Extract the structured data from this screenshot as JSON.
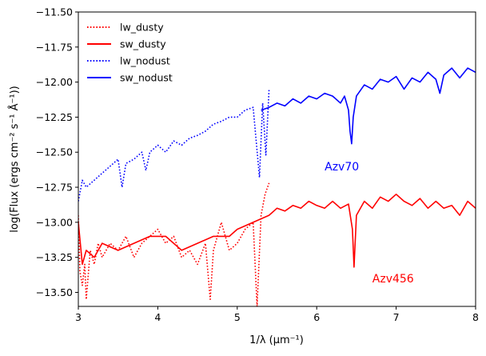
{
  "chart_data": {
    "type": "line",
    "title": "",
    "xlabel": "1/λ (μm⁻¹)",
    "ylabel": "log(Flux (ergs cm⁻² s⁻¹ Å⁻¹))",
    "xlim": [
      3,
      8
    ],
    "ylim": [
      -13.6,
      -11.5
    ],
    "xticks": [
      3,
      4,
      5,
      6,
      7,
      8
    ],
    "xtick_labels": [
      "3",
      "4",
      "5",
      "6",
      "7",
      "8"
    ],
    "yticks": [
      -11.5,
      -11.75,
      -12.0,
      -12.25,
      -12.5,
      -12.75,
      -13.0,
      -13.25,
      -13.5
    ],
    "ytick_labels": [
      "−11.50",
      "−11.75",
      "−12.00",
      "−12.25",
      "−12.50",
      "−12.75",
      "−13.00",
      "−13.25",
      "−13.50"
    ],
    "legend_location": "top-left",
    "series": [
      {
        "name": "lw_dusty",
        "color": "#ff0000",
        "style": "dotted",
        "points": [
          [
            3.0,
            -12.95
          ],
          [
            3.02,
            -13.35
          ],
          [
            3.05,
            -13.45
          ],
          [
            3.08,
            -13.3
          ],
          [
            3.1,
            -13.55
          ],
          [
            3.15,
            -13.2
          ],
          [
            3.2,
            -13.3
          ],
          [
            3.25,
            -13.15
          ],
          [
            3.3,
            -13.25
          ],
          [
            3.4,
            -13.15
          ],
          [
            3.5,
            -13.2
          ],
          [
            3.6,
            -13.1
          ],
          [
            3.7,
            -13.25
          ],
          [
            3.8,
            -13.15
          ],
          [
            3.9,
            -13.1
          ],
          [
            4.0,
            -13.05
          ],
          [
            4.1,
            -13.15
          ],
          [
            4.2,
            -13.1
          ],
          [
            4.3,
            -13.25
          ],
          [
            4.4,
            -13.2
          ],
          [
            4.5,
            -13.3
          ],
          [
            4.6,
            -13.15
          ],
          [
            4.66,
            -13.55
          ],
          [
            4.7,
            -13.2
          ],
          [
            4.8,
            -13.0
          ],
          [
            4.9,
            -13.2
          ],
          [
            5.0,
            -13.15
          ],
          [
            5.1,
            -13.05
          ],
          [
            5.2,
            -13.0
          ],
          [
            5.25,
            -13.6
          ],
          [
            5.3,
            -12.95
          ],
          [
            5.35,
            -12.8
          ],
          [
            5.4,
            -12.72
          ]
        ]
      },
      {
        "name": "sw_dusty",
        "color": "#ff0000",
        "style": "solid",
        "points": [
          [
            3.0,
            -13.0
          ],
          [
            3.05,
            -13.3
          ],
          [
            3.1,
            -13.2
          ],
          [
            3.2,
            -13.25
          ],
          [
            3.3,
            -13.15
          ],
          [
            3.5,
            -13.2
          ],
          [
            3.7,
            -13.15
          ],
          [
            3.9,
            -13.1
          ],
          [
            4.1,
            -13.1
          ],
          [
            4.3,
            -13.2
          ],
          [
            4.5,
            -13.15
          ],
          [
            4.7,
            -13.1
          ],
          [
            4.9,
            -13.1
          ],
          [
            5.0,
            -13.05
          ],
          [
            5.2,
            -13.0
          ],
          [
            5.4,
            -12.95
          ],
          [
            5.5,
            -12.9
          ],
          [
            5.6,
            -12.92
          ],
          [
            5.7,
            -12.88
          ],
          [
            5.8,
            -12.9
          ],
          [
            5.9,
            -12.85
          ],
          [
            6.0,
            -12.88
          ],
          [
            6.1,
            -12.9
          ],
          [
            6.2,
            -12.85
          ],
          [
            6.3,
            -12.9
          ],
          [
            6.4,
            -12.87
          ],
          [
            6.45,
            -13.05
          ],
          [
            6.47,
            -13.32
          ],
          [
            6.5,
            -12.95
          ],
          [
            6.6,
            -12.85
          ],
          [
            6.7,
            -12.9
          ],
          [
            6.8,
            -12.82
          ],
          [
            6.9,
            -12.85
          ],
          [
            7.0,
            -12.8
          ],
          [
            7.1,
            -12.85
          ],
          [
            7.2,
            -12.88
          ],
          [
            7.3,
            -12.83
          ],
          [
            7.4,
            -12.9
          ],
          [
            7.5,
            -12.85
          ],
          [
            7.6,
            -12.9
          ],
          [
            7.7,
            -12.88
          ],
          [
            7.8,
            -12.95
          ],
          [
            7.9,
            -12.85
          ],
          [
            8.0,
            -12.9
          ]
        ]
      },
      {
        "name": "lw_nodust",
        "color": "#0000ff",
        "style": "dotted",
        "points": [
          [
            3.0,
            -12.85
          ],
          [
            3.05,
            -12.7
          ],
          [
            3.1,
            -12.75
          ],
          [
            3.2,
            -12.7
          ],
          [
            3.3,
            -12.65
          ],
          [
            3.4,
            -12.6
          ],
          [
            3.5,
            -12.55
          ],
          [
            3.55,
            -12.75
          ],
          [
            3.6,
            -12.58
          ],
          [
            3.7,
            -12.55
          ],
          [
            3.8,
            -12.5
          ],
          [
            3.85,
            -12.63
          ],
          [
            3.9,
            -12.5
          ],
          [
            4.0,
            -12.45
          ],
          [
            4.1,
            -12.5
          ],
          [
            4.2,
            -12.42
          ],
          [
            4.3,
            -12.45
          ],
          [
            4.4,
            -12.4
          ],
          [
            4.5,
            -12.38
          ],
          [
            4.6,
            -12.35
          ],
          [
            4.7,
            -12.3
          ],
          [
            4.8,
            -12.28
          ],
          [
            4.9,
            -12.25
          ],
          [
            5.0,
            -12.25
          ],
          [
            5.1,
            -12.2
          ],
          [
            5.2,
            -12.18
          ],
          [
            5.28,
            -12.68
          ],
          [
            5.32,
            -12.15
          ],
          [
            5.36,
            -12.52
          ],
          [
            5.4,
            -12.05
          ]
        ]
      },
      {
        "name": "sw_nodust",
        "color": "#0000ff",
        "style": "solid",
        "points": [
          [
            5.3,
            -12.2
          ],
          [
            5.4,
            -12.18
          ],
          [
            5.5,
            -12.15
          ],
          [
            5.6,
            -12.17
          ],
          [
            5.7,
            -12.12
          ],
          [
            5.8,
            -12.15
          ],
          [
            5.9,
            -12.1
          ],
          [
            6.0,
            -12.12
          ],
          [
            6.1,
            -12.08
          ],
          [
            6.2,
            -12.1
          ],
          [
            6.3,
            -12.15
          ],
          [
            6.35,
            -12.1
          ],
          [
            6.4,
            -12.2
          ],
          [
            6.42,
            -12.35
          ],
          [
            6.44,
            -12.44
          ],
          [
            6.46,
            -12.25
          ],
          [
            6.5,
            -12.1
          ],
          [
            6.6,
            -12.02
          ],
          [
            6.7,
            -12.05
          ],
          [
            6.8,
            -11.98
          ],
          [
            6.9,
            -12.0
          ],
          [
            7.0,
            -11.96
          ],
          [
            7.1,
            -12.05
          ],
          [
            7.2,
            -11.97
          ],
          [
            7.3,
            -12.0
          ],
          [
            7.4,
            -11.93
          ],
          [
            7.5,
            -11.98
          ],
          [
            7.55,
            -12.08
          ],
          [
            7.6,
            -11.95
          ],
          [
            7.7,
            -11.9
          ],
          [
            7.8,
            -11.97
          ],
          [
            7.9,
            -11.9
          ],
          [
            8.0,
            -11.93
          ]
        ]
      }
    ],
    "annotations": [
      {
        "text": "Azv70",
        "x": 6.1,
        "y": -12.6,
        "color": "#0000ff"
      },
      {
        "text": "Azv456",
        "x": 6.7,
        "y": -13.4,
        "color": "#ff0000"
      }
    ]
  }
}
